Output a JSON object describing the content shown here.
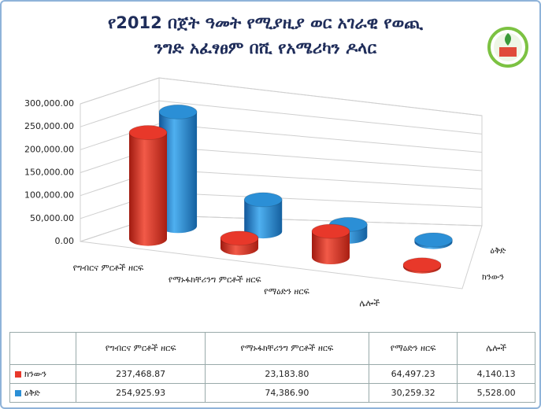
{
  "chart_data": {
    "type": "cylinder3d",
    "title": [
      "የ2012 በጀት ዓመት የሚያዚያ ወር አገራዊ የወጪ",
      "ንግድ አፈፃፀም በሺ የአሜሪካን ዶላር"
    ],
    "categories": [
      "የግብርና ምርቶች ዘርፍ",
      "የማኑፋክቸሪንግ ምርቶች ዘርፍ",
      "የማዕድን ዘርፍ",
      "ሌሎች"
    ],
    "series": [
      {
        "name": "ክንውን",
        "color": "#e8382a",
        "values": [
          237468.87,
          23183.8,
          64497.23,
          4140.13
        ],
        "value_labels": [
          "237,468.87",
          "23,183.80",
          "64,497.23",
          "4,140.13"
        ]
      },
      {
        "name": "ዕቅድ",
        "color": "#2b8fd6",
        "values": [
          254925.93,
          74386.9,
          30259.32,
          5528.0
        ],
        "value_labels": [
          "254,925.93",
          "74,386.90",
          "30,259.32",
          "5,528.00"
        ]
      }
    ],
    "ylim": [
      0,
      300000
    ],
    "yticks": [
      {
        "value": 0,
        "label": "0.00"
      },
      {
        "value": 50000,
        "label": "50,000.00"
      },
      {
        "value": 100000,
        "label": "100,000.00"
      },
      {
        "value": 150000,
        "label": "150,000.00"
      },
      {
        "value": 200000,
        "label": "200,000.00"
      },
      {
        "value": 250000,
        "label": "250,000.00"
      },
      {
        "value": 300000,
        "label": "300,000.00"
      }
    ],
    "grid": true
  }
}
